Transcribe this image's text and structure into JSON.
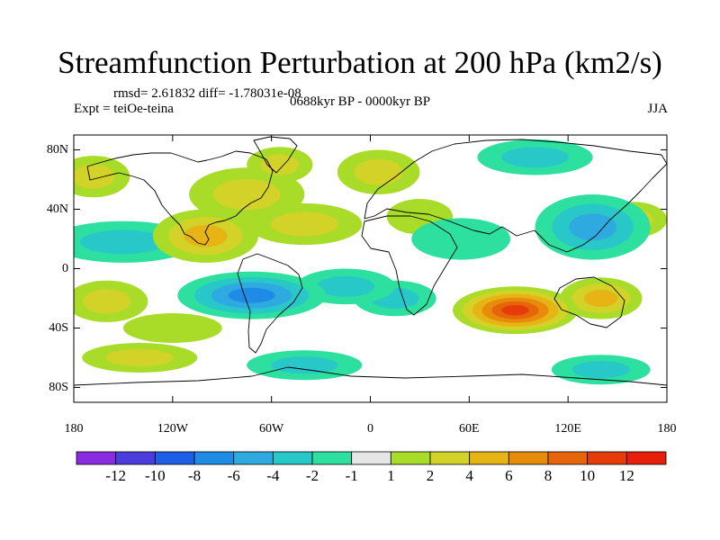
{
  "chart_data": {
    "type": "contour-map",
    "title": "Streamfunction Perturbation at 200 hPa (km2/s)",
    "stats": "rmsd= 2.61832 diff= -1.78031e-08",
    "experiment": "Expt = teiOe-teina",
    "period": "0688kyr BP - 0000kyr BP",
    "season": "JJA",
    "xaxis": {
      "range": [
        -180,
        180
      ],
      "ticks": [
        {
          "value": -180,
          "label": "180"
        },
        {
          "value": -120,
          "label": "120W"
        },
        {
          "value": -60,
          "label": "60W"
        },
        {
          "value": 0,
          "label": "0"
        },
        {
          "value": 60,
          "label": "60E"
        },
        {
          "value": 120,
          "label": "120E"
        },
        {
          "value": 180,
          "label": "180"
        }
      ]
    },
    "yaxis": {
      "range": [
        -90,
        90
      ],
      "ticks": [
        {
          "value": 80,
          "label": "80N"
        },
        {
          "value": 40,
          "label": "40N"
        },
        {
          "value": 0,
          "label": "0"
        },
        {
          "value": -40,
          "label": "40S"
        },
        {
          "value": -80,
          "label": "80S"
        }
      ]
    },
    "colorbar": {
      "labels": [
        "-12",
        "-10",
        "-8",
        "-6",
        "-4",
        "-2",
        "-1",
        "1",
        "2",
        "4",
        "6",
        "8",
        "10",
        "12"
      ],
      "colors": [
        "#8a2be2",
        "#4b3cdc",
        "#1e5ee6",
        "#1e8ce6",
        "#2eaae0",
        "#28c8c8",
        "#2de0a0",
        "#e6e6e6",
        "#a8dc28",
        "#d2d228",
        "#e6b414",
        "#e68c0a",
        "#e6640a",
        "#e63c0a",
        "#e61e0a"
      ]
    },
    "anomalies": [
      {
        "lon": -100,
        "lat": 22,
        "value": 5,
        "rlon": 32,
        "rlat": 18
      },
      {
        "lon": -75,
        "lat": 50,
        "value": 3,
        "rlon": 35,
        "rlat": 18
      },
      {
        "lon": -55,
        "lat": 70,
        "value": 3,
        "rlon": 20,
        "rlat": 12
      },
      {
        "lon": -168,
        "lat": 62,
        "value": 2,
        "rlon": 22,
        "rlat": 14
      },
      {
        "lon": -40,
        "lat": 30,
        "value": 2,
        "rlon": 35,
        "rlat": 14
      },
      {
        "lon": 5,
        "lat": 65,
        "value": 2,
        "rlon": 25,
        "rlat": 15
      },
      {
        "lon": 30,
        "lat": 35,
        "value": 1.5,
        "rlon": 20,
        "rlat": 12
      },
      {
        "lon": 160,
        "lat": 33,
        "value": 2,
        "rlon": 20,
        "rlat": 12
      },
      {
        "lon": -150,
        "lat": 18,
        "value": -2,
        "rlon": 45,
        "rlat": 14
      },
      {
        "lon": 135,
        "lat": 28,
        "value": -5,
        "rlon": 35,
        "rlat": 22
      },
      {
        "lon": 100,
        "lat": 75,
        "value": -3,
        "rlon": 35,
        "rlat": 12
      },
      {
        "lon": 55,
        "lat": 20,
        "value": -1.5,
        "rlon": 30,
        "rlat": 14
      },
      {
        "lon": -72,
        "lat": -18,
        "value": -6,
        "rlon": 45,
        "rlat": 16
      },
      {
        "lon": -15,
        "lat": -12,
        "value": -2.5,
        "rlon": 30,
        "rlat": 12
      },
      {
        "lon": 15,
        "lat": -20,
        "value": -2,
        "rlon": 25,
        "rlat": 12
      },
      {
        "lon": 88,
        "lat": -28,
        "value": 11,
        "rlon": 38,
        "rlat": 16
      },
      {
        "lon": 140,
        "lat": -20,
        "value": 4,
        "rlon": 25,
        "rlat": 14
      },
      {
        "lon": -160,
        "lat": -22,
        "value": 3,
        "rlon": 25,
        "rlat": 14
      },
      {
        "lon": -140,
        "lat": -60,
        "value": 3,
        "rlon": 35,
        "rlat": 10
      },
      {
        "lon": -40,
        "lat": -65,
        "value": -2.5,
        "rlon": 35,
        "rlat": 10
      },
      {
        "lon": 140,
        "lat": -68,
        "value": -2,
        "rlon": 30,
        "rlat": 10
      },
      {
        "lon": -120,
        "lat": -40,
        "value": 1.5,
        "rlon": 30,
        "rlat": 10
      }
    ]
  }
}
